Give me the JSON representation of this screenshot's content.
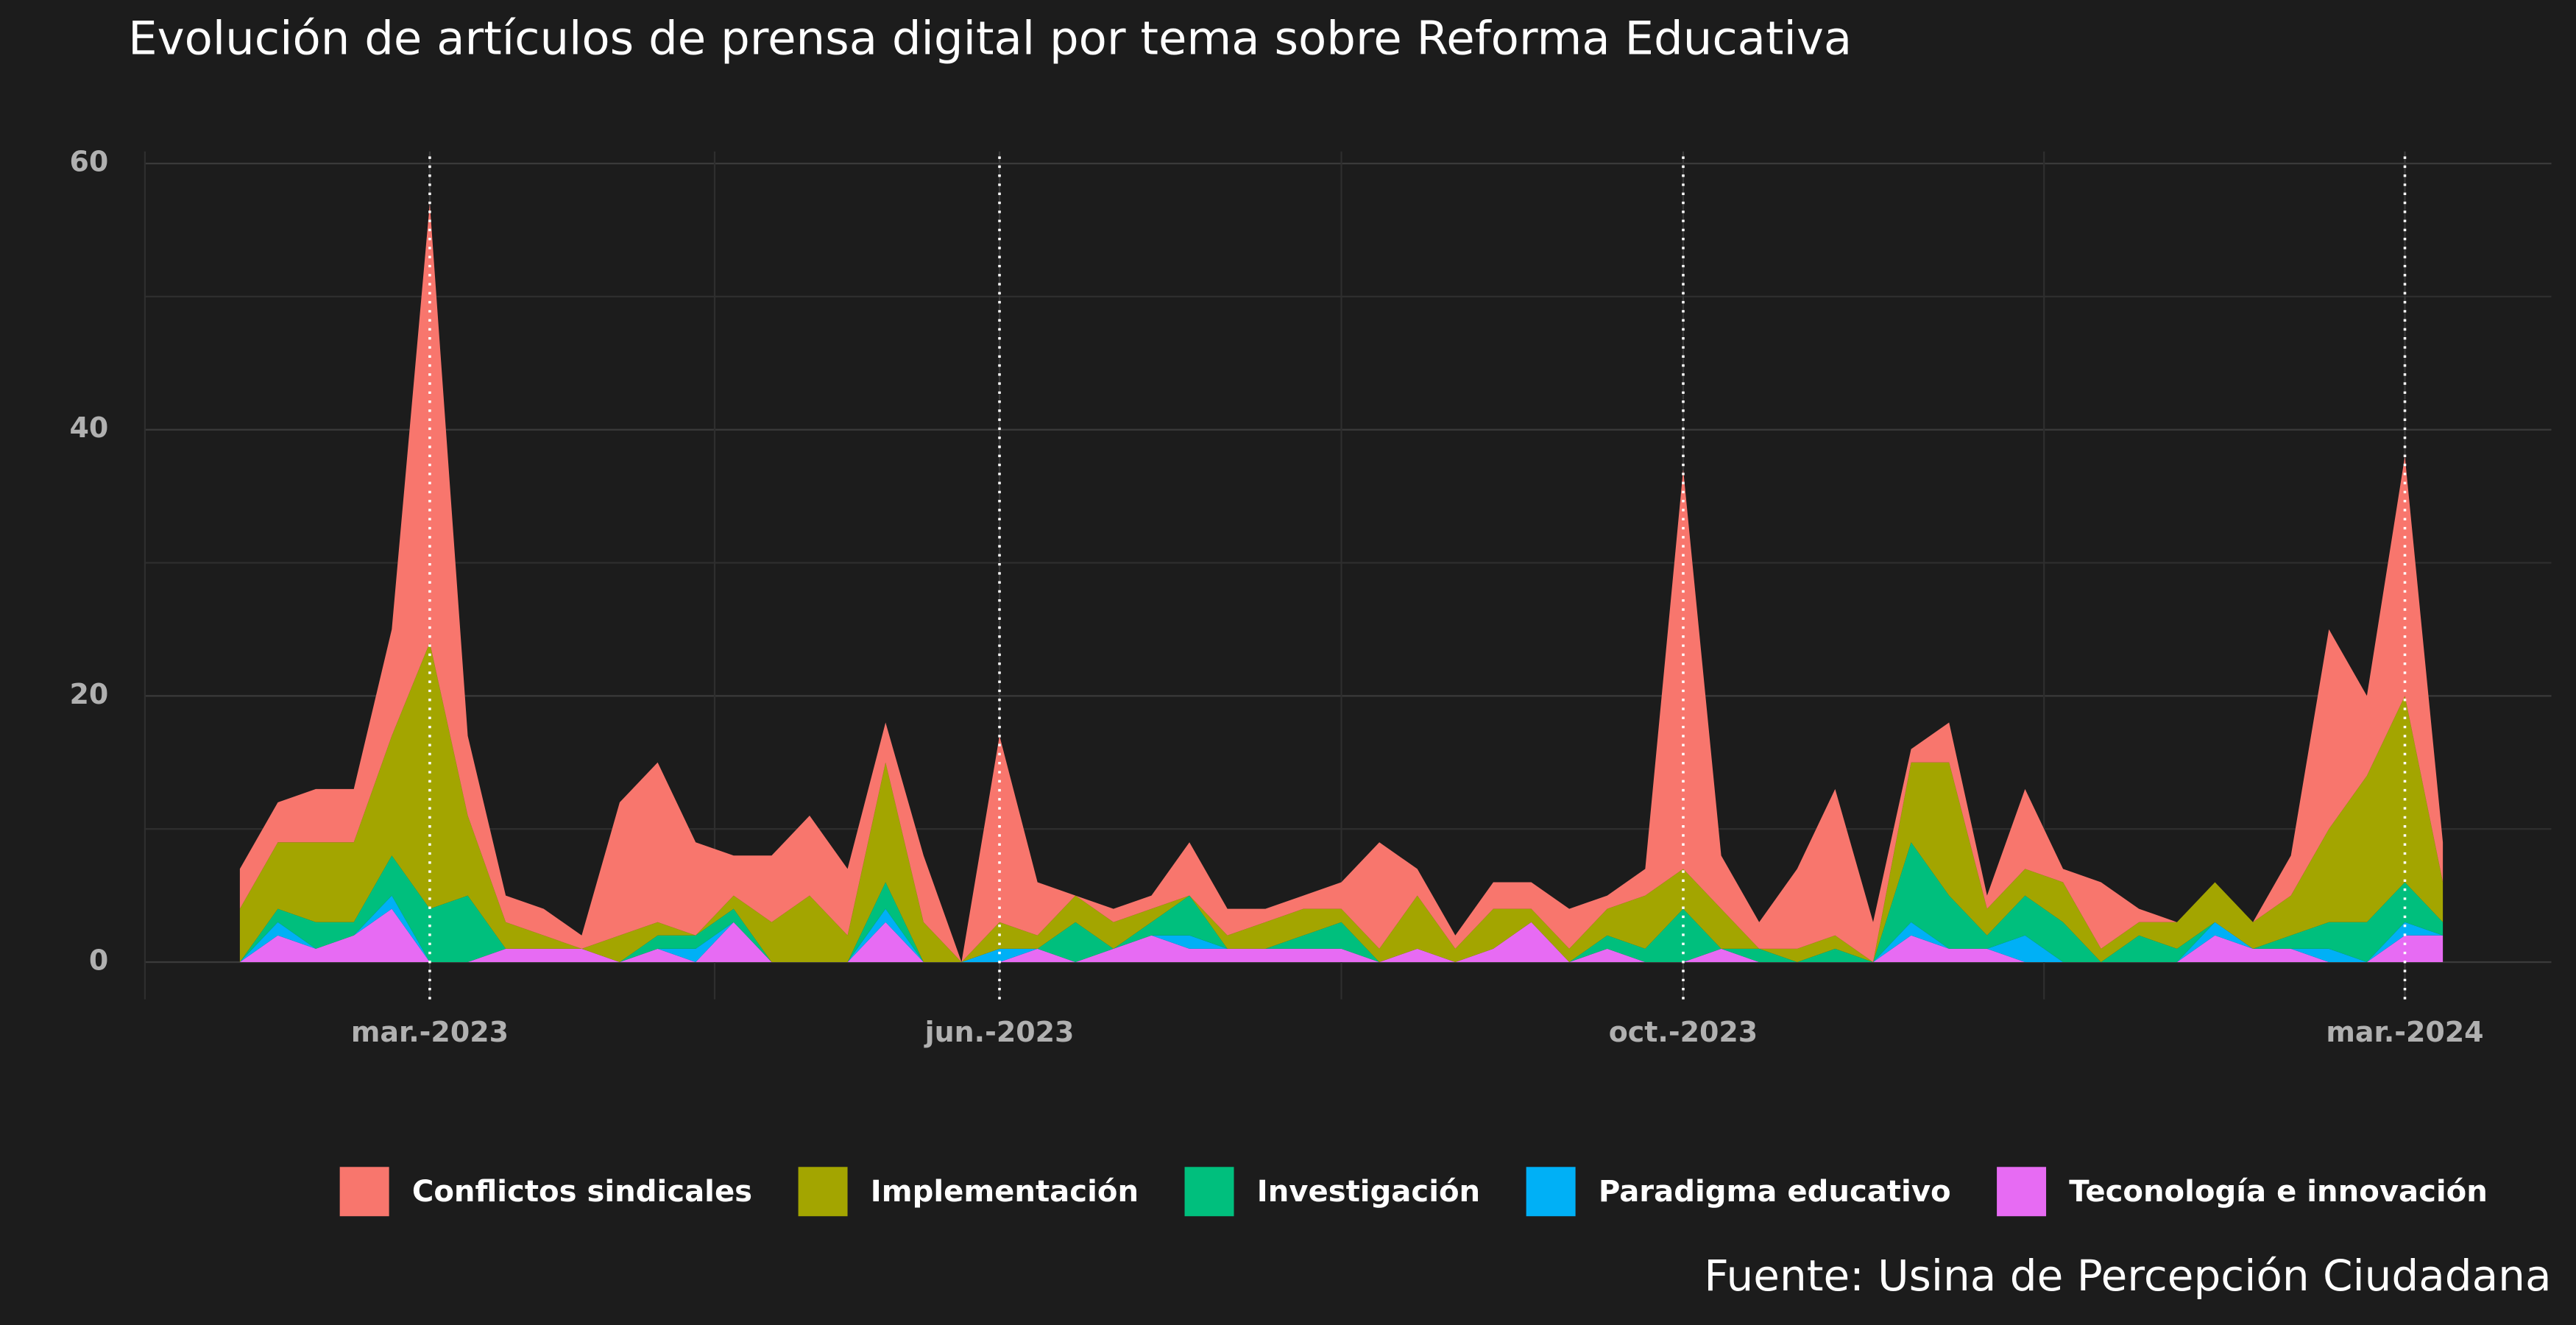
{
  "chart_data": {
    "type": "area",
    "stacked": true,
    "title": "Evolución de artículos de prensa digital por tema sobre Reforma Educativa",
    "caption": "Fuente: Usina de Percepción Ciudadana",
    "categories": [
      null,
      null,
      null,
      null,
      null,
      "mar.-2023",
      null,
      null,
      null,
      null,
      null,
      null,
      null,
      null,
      null,
      null,
      null,
      null,
      null,
      null,
      "jun.-2023",
      null,
      null,
      null,
      null,
      null,
      null,
      null,
      null,
      null,
      null,
      null,
      null,
      null,
      null,
      null,
      null,
      null,
      "oct.-2023",
      null,
      null,
      null,
      null,
      null,
      null,
      null,
      null,
      null,
      null,
      null,
      null,
      null,
      null,
      null,
      null,
      null,
      null,
      "mar.-2024",
      null
    ],
    "ylim": [
      -2.8,
      60.9
    ],
    "yticks": [
      0,
      20,
      40,
      60
    ],
    "grid": true,
    "legend": "bottom",
    "series": [
      {
        "name": "Teconología e innovación",
        "color": "#E76BF3",
        "values": [
          0,
          2,
          1,
          2,
          4,
          0,
          0,
          1,
          1,
          1,
          0,
          1,
          0,
          3,
          0,
          0,
          0,
          3,
          0,
          0,
          0,
          1,
          0,
          1,
          2,
          1,
          1,
          1,
          1,
          1,
          0,
          1,
          0,
          1,
          3,
          0,
          1,
          0,
          0,
          1,
          0,
          0,
          0,
          0,
          2,
          1,
          1,
          0,
          0,
          0,
          0,
          0,
          2,
          1,
          1,
          0,
          0,
          2,
          2
        ]
      },
      {
        "name": "Paradigma educativo",
        "color": "#00B0F6",
        "values": [
          0,
          1,
          0,
          0,
          1,
          0,
          0,
          0,
          0,
          0,
          0,
          0,
          1,
          0,
          0,
          0,
          0,
          1,
          0,
          0,
          1,
          0,
          0,
          0,
          0,
          1,
          0,
          0,
          0,
          0,
          0,
          0,
          0,
          0,
          0,
          0,
          0,
          0,
          0,
          0,
          0,
          0,
          0,
          0,
          1,
          0,
          0,
          2,
          0,
          0,
          0,
          0,
          1,
          0,
          0,
          1,
          0,
          1,
          0
        ]
      },
      {
        "name": "Investigación",
        "color": "#00BF7D",
        "values": [
          0,
          1,
          2,
          1,
          3,
          4,
          5,
          0,
          0,
          0,
          0,
          1,
          1,
          1,
          0,
          0,
          0,
          2,
          0,
          0,
          0,
          0,
          3,
          0,
          1,
          3,
          0,
          0,
          1,
          2,
          0,
          0,
          0,
          0,
          0,
          0,
          1,
          1,
          4,
          0,
          1,
          0,
          1,
          0,
          6,
          4,
          1,
          3,
          3,
          0,
          2,
          1,
          0,
          0,
          1,
          2,
          3,
          3,
          1
        ]
      },
      {
        "name": "Implementación",
        "color": "#A3A500",
        "values": [
          4,
          5,
          6,
          6,
          9,
          20,
          6,
          2,
          1,
          0,
          2,
          1,
          0,
          1,
          3,
          5,
          2,
          9,
          3,
          0,
          2,
          1,
          2,
          2,
          1,
          0,
          1,
          2,
          2,
          1,
          1,
          4,
          1,
          3,
          1,
          1,
          2,
          4,
          3,
          3,
          0,
          1,
          1,
          0,
          6,
          10,
          2,
          2,
          3,
          1,
          1,
          2,
          3,
          2,
          3,
          7,
          11,
          14,
          3
        ]
      },
      {
        "name": "Conflictos sindicales",
        "color": "#F8766D",
        "values": [
          3,
          3,
          4,
          4,
          8,
          33,
          6,
          2,
          2,
          1,
          10,
          12,
          7,
          3,
          5,
          6,
          5,
          3,
          5,
          0,
          14,
          4,
          0,
          1,
          1,
          4,
          2,
          1,
          1,
          2,
          8,
          2,
          1,
          2,
          2,
          3,
          1,
          2,
          30,
          4,
          2,
          6,
          11,
          3,
          1,
          3,
          1,
          6,
          1,
          5,
          1,
          0,
          0,
          0,
          3,
          15,
          6,
          18,
          3
        ]
      }
    ]
  }
}
